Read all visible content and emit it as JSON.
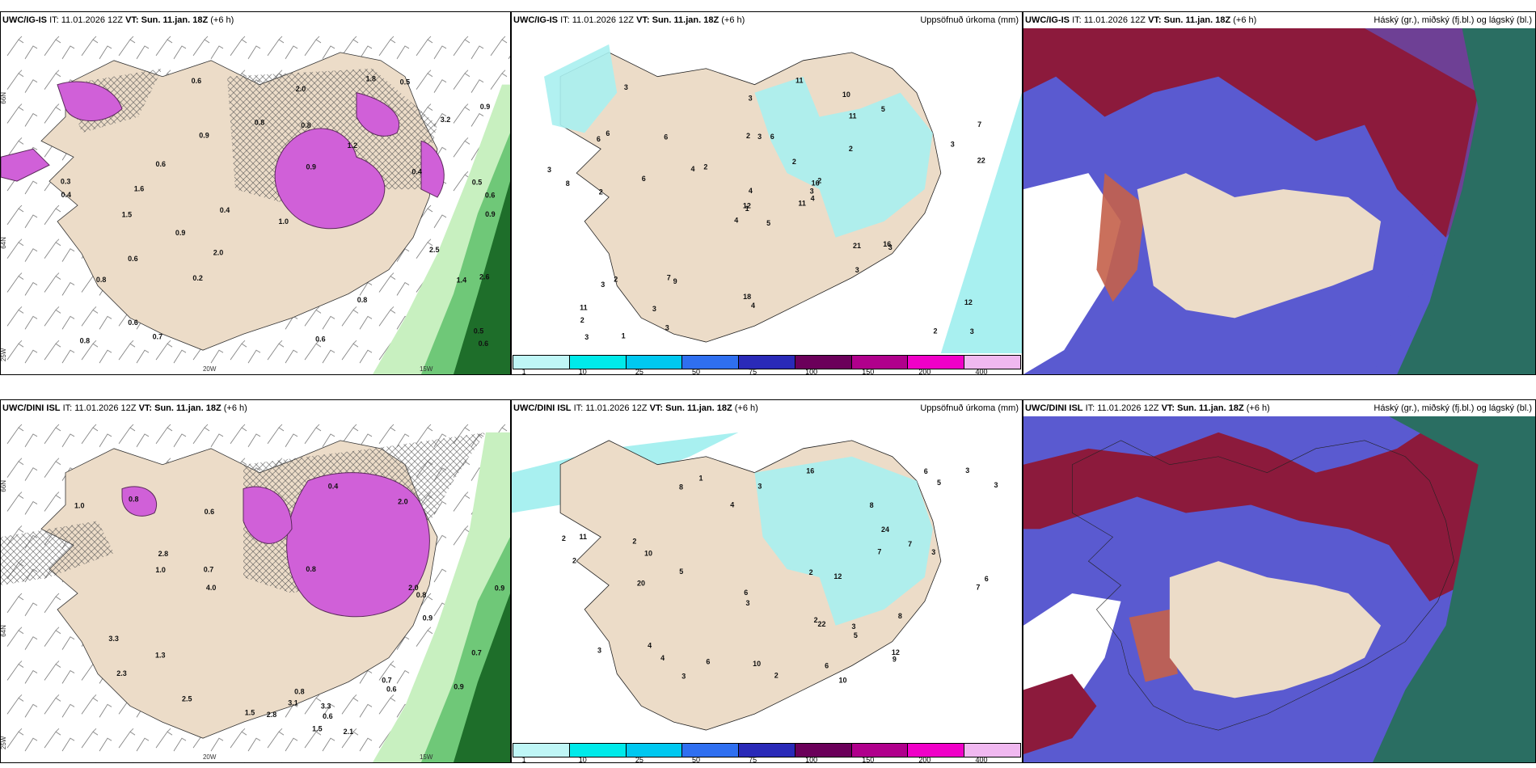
{
  "panels": {
    "igis": {
      "model": "UWC/IG-IS",
      "it_label": "IT:",
      "it_value": "11.01.2026 12Z",
      "vt_label": "VT:",
      "vt_value": "Sun. 11.jan. 18Z",
      "lead": "(+6 h)"
    },
    "dini": {
      "model": "UWC/DINI ISL",
      "it_label": "IT:",
      "it_value": "11.01.2026 12Z",
      "vt_label": "VT:",
      "vt_value": "Sun. 11.jan. 18Z",
      "lead": "(+6 h)"
    }
  },
  "precip_title": "Uppsöfnuð úrkoma (mm)",
  "cloud_title": "Háský (gr.), miðský (fj.bl.) og lágský (bl.)",
  "grid_labels": {
    "lat_66": "66N",
    "lat_64": "64N",
    "lon_25": "25W",
    "lon_20": "20W",
    "lon_15": "15W"
  },
  "colorbar": {
    "labels": [
      "1",
      "10",
      "25",
      "50",
      "75",
      "100",
      "150",
      "200",
      "400"
    ],
    "colors": [
      "#bff6f6",
      "#00eaea",
      "#00c8f0",
      "#2f6ff0",
      "#2a2ab8",
      "#6b005a",
      "#b0008c",
      "#f000c8",
      "#f0b8f0"
    ]
  },
  "colors": {
    "land": "#ecdcc8",
    "precip": "#a8f0f0",
    "magenta": "#d060d8",
    "green_light": "#c8f0c0",
    "green_dark": "#1e6e2a",
    "cloud_high": "#8c1a3c",
    "cloud_mid": "#5a5ad0",
    "cloud_low": "#2a6e62"
  },
  "precip_top_values": [
    "5",
    "6",
    "1",
    "11",
    "16",
    "9",
    "10",
    "6",
    "11",
    "11",
    "3",
    "3",
    "2",
    "7",
    "4",
    "2",
    "1",
    "2",
    "2",
    "2",
    "2",
    "2",
    "3",
    "3",
    "2",
    "3",
    "6",
    "3",
    "8",
    "21",
    "22",
    "12",
    "18",
    "4",
    "6",
    "5",
    "7",
    "2",
    "12",
    "16",
    "11",
    "4",
    "6",
    "3",
    "3",
    "3",
    "3",
    "3",
    "4",
    "4",
    "3",
    "3"
  ],
  "precip_bottom_values": [
    "10",
    "8",
    "4",
    "2",
    "7",
    "6",
    "7",
    "5",
    "3",
    "4",
    "3",
    "2",
    "6",
    "2",
    "7",
    "6",
    "2",
    "5",
    "8",
    "3",
    "12",
    "22",
    "3",
    "9",
    "12",
    "24",
    "20",
    "10",
    "2",
    "4",
    "5",
    "3",
    "8",
    "6",
    "1",
    "10",
    "16",
    "11",
    "6",
    "3",
    "3",
    "2",
    "3"
  ],
  "wind_top_values": [
    "0.9",
    "0.5",
    "1.2",
    "0.6",
    "0.4",
    "2.6",
    "2.0",
    "1.8",
    "1.4",
    "3.2",
    "0.6",
    "2.5",
    "0.4",
    "0.2",
    "0.8",
    "1.0",
    "0.9",
    "0.3",
    "0.6",
    "0.8",
    "0.5",
    "0.8",
    "0.6",
    "0.6",
    "0.9",
    "0.5",
    "0.8",
    "0.8",
    "0.6",
    "0.9",
    "0.7",
    "0.6",
    "1.5",
    "2.0",
    "1.6",
    "0.4",
    "0.9"
  ],
  "wind_bottom_values": [
    "1.5",
    "0.8",
    "0.8",
    "1.0",
    "0.9",
    "2.3",
    "3.1",
    "3.3",
    "2.0",
    "2.8",
    "1.3",
    "0.9",
    "2.8",
    "2.1",
    "2.0",
    "0.6",
    "0.7",
    "0.6",
    "0.7",
    "0.8",
    "0.8",
    "0.9",
    "1.0",
    "4.0",
    "3.3",
    "2.5",
    "0.4",
    "1.5",
    "0.6",
    "0.7"
  ]
}
